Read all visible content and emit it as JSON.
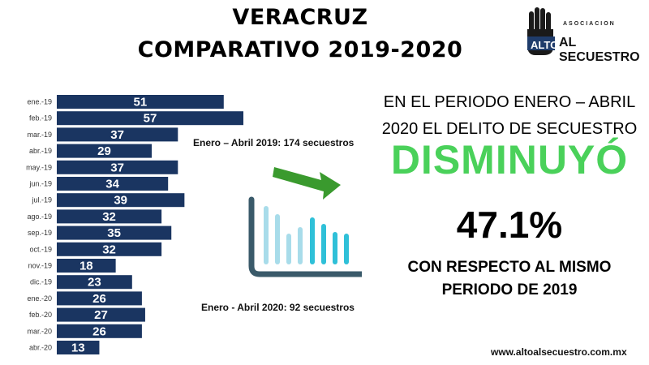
{
  "header": {
    "title_line1": "VERACRUZ",
    "title_line2": "COMPARATIVO 2019-2020"
  },
  "logo": {
    "top_text": "ASOCIACION",
    "brand_word": "ALTO",
    "brand_text": "AL SECUESTRO",
    "icon": "raised-hand-icon",
    "colors": {
      "hand": "#1a1a1a",
      "brand_box": "#1f3c6b"
    }
  },
  "chart_data": {
    "type": "bar",
    "orientation": "horizontal",
    "categories": [
      "ene.-19",
      "feb.-19",
      "mar.-19",
      "abr.-19",
      "may.-19",
      "jun.-19",
      "jul.-19",
      "ago.-19",
      "sep.-19",
      "oct.-19",
      "nov.-19",
      "dic.-19",
      "ene.-20",
      "feb.-20",
      "mar.-20",
      "abr.-20"
    ],
    "values": [
      51,
      57,
      37,
      29,
      37,
      34,
      39,
      32,
      35,
      32,
      18,
      23,
      26,
      27,
      26,
      13
    ],
    "title": "",
    "xlabel": "",
    "ylabel": "",
    "xlim": [
      0,
      57
    ],
    "grid": false,
    "legend": "none",
    "colors": {
      "bar": "#1a3561",
      "label": "#ffffff"
    }
  },
  "annotations": {
    "period_2019": "Enero – Abril 2019: 174 secuestros",
    "period_2020": "Enero - Abril 2020: 92 secuestros"
  },
  "illustration": {
    "icon": "decreasing-bar-chart-icon",
    "colors": {
      "arrow": "#3a9a2e",
      "bars_light": "#a8dcea",
      "bars_dark": "#2fc0d8",
      "axis": "#3a5a6a"
    }
  },
  "headline": {
    "line1": "EN EL PERIODO ENERO – ABRIL",
    "line2": "2020 EL DELITO DE SECUESTRO",
    "status": "DISMINUYÓ",
    "status_color": "#4ad15a",
    "percent": "47.1%",
    "line3": "CON RESPECTO AL MISMO",
    "line4": "PERIODO DE  2019"
  },
  "footer": {
    "website": "www.altoalsecuestro.com.mx"
  }
}
